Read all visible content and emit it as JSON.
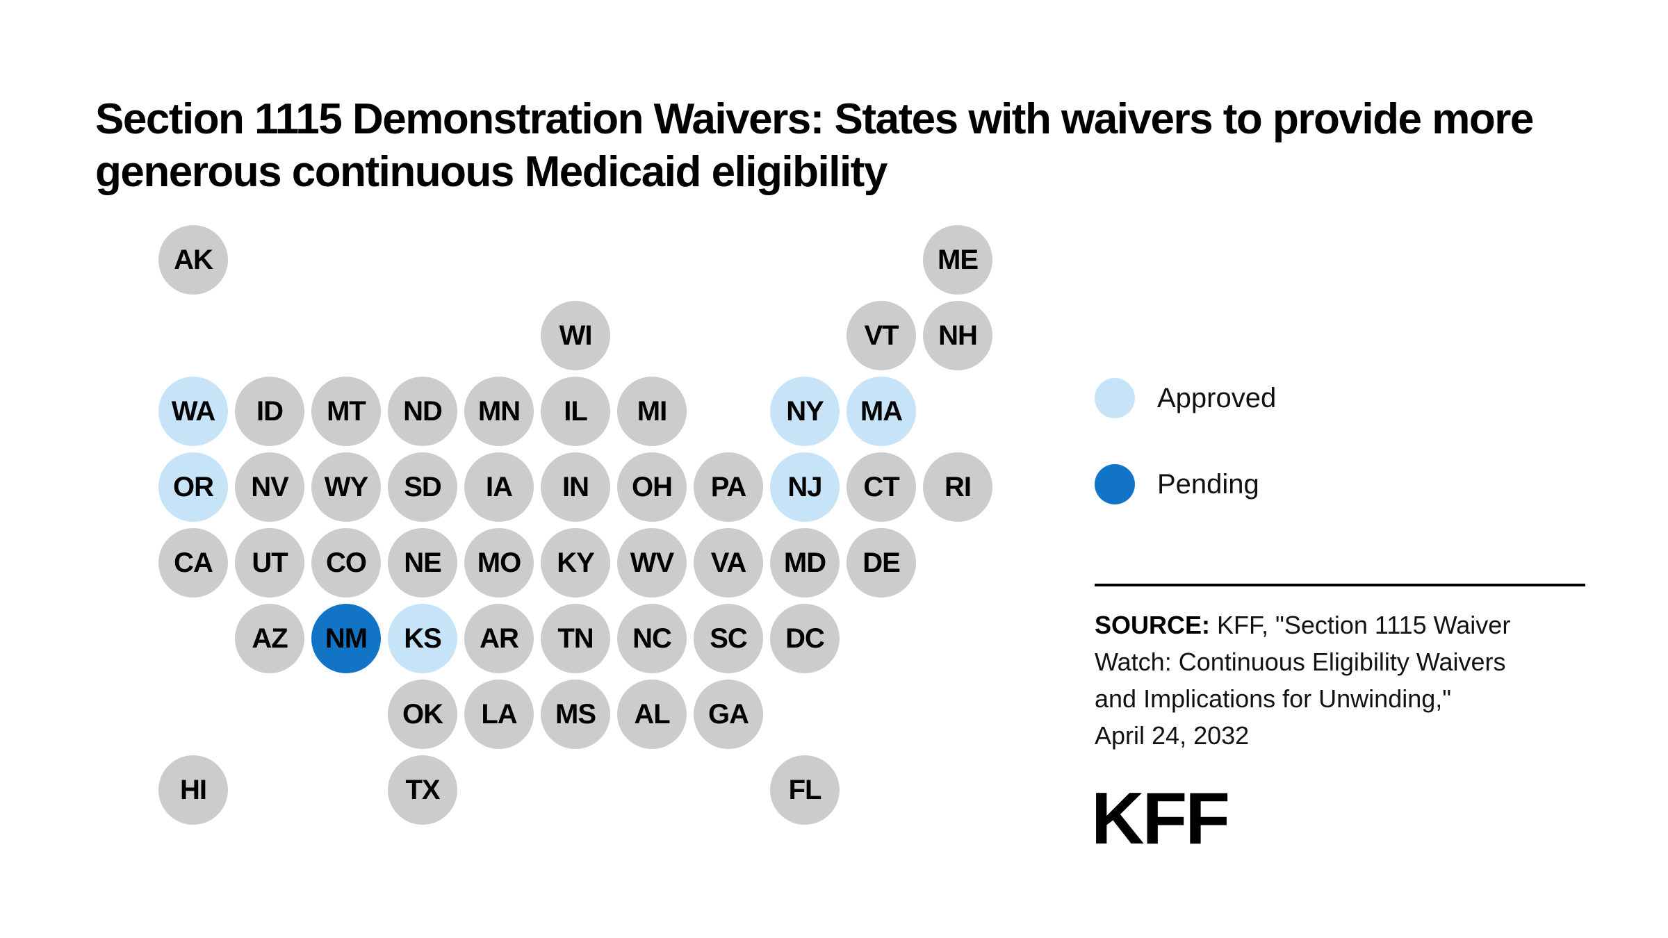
{
  "chart_data": {
    "type": "tile-map",
    "title": "Section 1115 Demonstration Waivers: States with waivers to provide more generous continuous Medicaid eligibility",
    "legend": [
      {
        "label": "Approved",
        "color": "#C7E3F8"
      },
      {
        "label": "Pending",
        "color": "#1174C6"
      }
    ],
    "default_color": "#CCCCCC",
    "legend_position": "right",
    "approved_states": [
      "WA",
      "OR",
      "NY",
      "MA",
      "NJ",
      "KS"
    ],
    "pending_states": [
      "NM"
    ],
    "tiles": [
      {
        "abbr": "AK",
        "row": 1,
        "col": 1,
        "status": "none"
      },
      {
        "abbr": "ME",
        "row": 1,
        "col": 11,
        "status": "none"
      },
      {
        "abbr": "WI",
        "row": 2,
        "col": 6,
        "status": "none"
      },
      {
        "abbr": "VT",
        "row": 2,
        "col": 10,
        "status": "none"
      },
      {
        "abbr": "NH",
        "row": 2,
        "col": 11,
        "status": "none"
      },
      {
        "abbr": "WA",
        "row": 3,
        "col": 1,
        "status": "approved"
      },
      {
        "abbr": "ID",
        "row": 3,
        "col": 2,
        "status": "none"
      },
      {
        "abbr": "MT",
        "row": 3,
        "col": 3,
        "status": "none"
      },
      {
        "abbr": "ND",
        "row": 3,
        "col": 4,
        "status": "none"
      },
      {
        "abbr": "MN",
        "row": 3,
        "col": 5,
        "status": "none"
      },
      {
        "abbr": "IL",
        "row": 3,
        "col": 6,
        "status": "none"
      },
      {
        "abbr": "MI",
        "row": 3,
        "col": 7,
        "status": "none"
      },
      {
        "abbr": "NY",
        "row": 3,
        "col": 9,
        "status": "approved"
      },
      {
        "abbr": "MA",
        "row": 3,
        "col": 10,
        "status": "approved"
      },
      {
        "abbr": "OR",
        "row": 4,
        "col": 1,
        "status": "approved"
      },
      {
        "abbr": "NV",
        "row": 4,
        "col": 2,
        "status": "none"
      },
      {
        "abbr": "WY",
        "row": 4,
        "col": 3,
        "status": "none"
      },
      {
        "abbr": "SD",
        "row": 4,
        "col": 4,
        "status": "none"
      },
      {
        "abbr": "IA",
        "row": 4,
        "col": 5,
        "status": "none"
      },
      {
        "abbr": "IN",
        "row": 4,
        "col": 6,
        "status": "none"
      },
      {
        "abbr": "OH",
        "row": 4,
        "col": 7,
        "status": "none"
      },
      {
        "abbr": "PA",
        "row": 4,
        "col": 8,
        "status": "none"
      },
      {
        "abbr": "NJ",
        "row": 4,
        "col": 9,
        "status": "approved"
      },
      {
        "abbr": "CT",
        "row": 4,
        "col": 10,
        "status": "none"
      },
      {
        "abbr": "RI",
        "row": 4,
        "col": 11,
        "status": "none"
      },
      {
        "abbr": "CA",
        "row": 5,
        "col": 1,
        "status": "none"
      },
      {
        "abbr": "UT",
        "row": 5,
        "col": 2,
        "status": "none"
      },
      {
        "abbr": "CO",
        "row": 5,
        "col": 3,
        "status": "none"
      },
      {
        "abbr": "NE",
        "row": 5,
        "col": 4,
        "status": "none"
      },
      {
        "abbr": "MO",
        "row": 5,
        "col": 5,
        "status": "none"
      },
      {
        "abbr": "KY",
        "row": 5,
        "col": 6,
        "status": "none"
      },
      {
        "abbr": "WV",
        "row": 5,
        "col": 7,
        "status": "none"
      },
      {
        "abbr": "VA",
        "row": 5,
        "col": 8,
        "status": "none"
      },
      {
        "abbr": "MD",
        "row": 5,
        "col": 9,
        "status": "none"
      },
      {
        "abbr": "DE",
        "row": 5,
        "col": 10,
        "status": "none"
      },
      {
        "abbr": "AZ",
        "row": 6,
        "col": 2,
        "status": "none"
      },
      {
        "abbr": "NM",
        "row": 6,
        "col": 3,
        "status": "pending"
      },
      {
        "abbr": "KS",
        "row": 6,
        "col": 4,
        "status": "approved"
      },
      {
        "abbr": "AR",
        "row": 6,
        "col": 5,
        "status": "none"
      },
      {
        "abbr": "TN",
        "row": 6,
        "col": 6,
        "status": "none"
      },
      {
        "abbr": "NC",
        "row": 6,
        "col": 7,
        "status": "none"
      },
      {
        "abbr": "SC",
        "row": 6,
        "col": 8,
        "status": "none"
      },
      {
        "abbr": "DC",
        "row": 6,
        "col": 9,
        "status": "none"
      },
      {
        "abbr": "OK",
        "row": 7,
        "col": 4,
        "status": "none"
      },
      {
        "abbr": "LA",
        "row": 7,
        "col": 5,
        "status": "none"
      },
      {
        "abbr": "MS",
        "row": 7,
        "col": 6,
        "status": "none"
      },
      {
        "abbr": "AL",
        "row": 7,
        "col": 7,
        "status": "none"
      },
      {
        "abbr": "GA",
        "row": 7,
        "col": 8,
        "status": "none"
      },
      {
        "abbr": "HI",
        "row": 8,
        "col": 1,
        "status": "none"
      },
      {
        "abbr": "TX",
        "row": 8,
        "col": 4,
        "status": "none"
      },
      {
        "abbr": "FL",
        "row": 8,
        "col": 9,
        "status": "none"
      }
    ]
  },
  "source": {
    "label": "SOURCE:",
    "text": "KFF, \"Section 1115 Waiver Watch: Continuous Eligibility Waivers and Implications for Unwinding,\" April 24, 2032",
    "lines": [
      "KFF, \"Section 1115 Waiver",
      "Watch: Continuous Eligibility Waivers",
      "and Implications for Unwinding,\"",
      "April 24, 2032"
    ]
  },
  "logo": {
    "text": "KFF"
  }
}
